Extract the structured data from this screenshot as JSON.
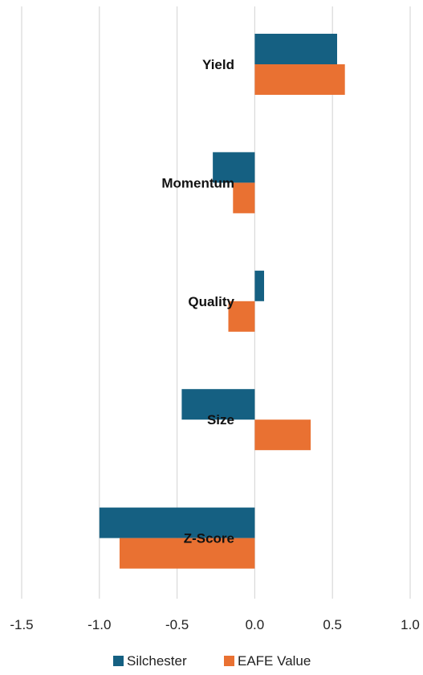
{
  "chart_data": {
    "type": "bar",
    "orientation": "horizontal",
    "categories": [
      "Yield",
      "Momentum",
      "Quality",
      "Size",
      "Z-Score"
    ],
    "series": [
      {
        "name": "Silchester",
        "values": [
          0.53,
          -0.27,
          0.06,
          -0.47,
          -1.0
        ]
      },
      {
        "name": "EAFE Value",
        "values": [
          0.58,
          -0.14,
          -0.17,
          0.36,
          -0.87
        ]
      }
    ],
    "xlim": [
      -1.5,
      1.0
    ],
    "xticks": [
      -1.5,
      -1.0,
      -0.5,
      0.0,
      0.5,
      1.0
    ],
    "xtick_labels": [
      "-1.5",
      "-1.0",
      "-0.5",
      "0.0",
      "0.5",
      "1.0"
    ],
    "grid": "vertical",
    "legend_position": "bottom",
    "colors": {
      "Silchester": "#156082",
      "EAFE Value": "#E97132"
    },
    "title": "",
    "xlabel": "",
    "ylabel": ""
  }
}
